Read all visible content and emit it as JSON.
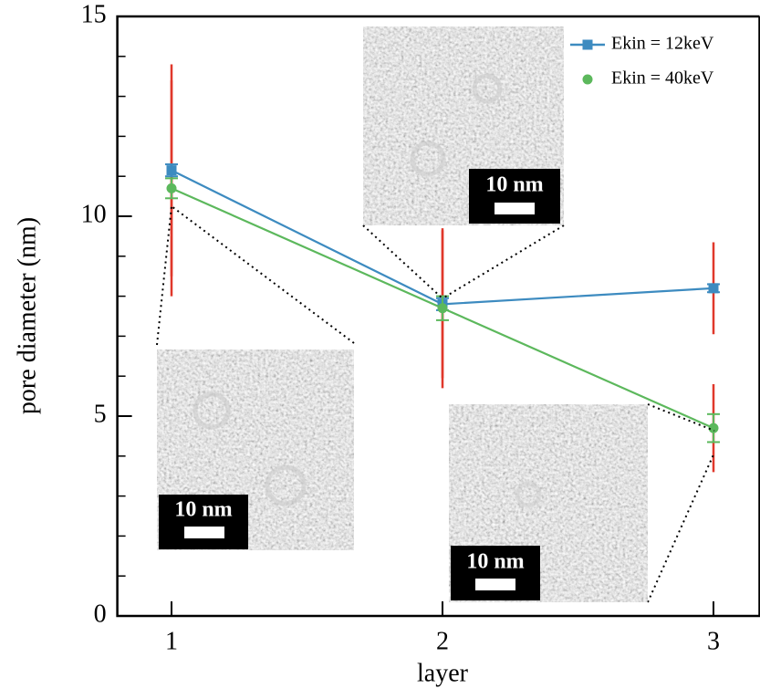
{
  "chart_data": {
    "type": "line",
    "x_label": "layer",
    "y_label": "pore diameter (nm)",
    "x": [
      1,
      2,
      3
    ],
    "series": [
      {
        "name": "Ekin = 12keV",
        "color": "#3d8bc0",
        "marker": "square",
        "values": [
          11.15,
          7.8,
          8.2
        ],
        "errors": [
          0.15,
          0.15,
          0.1
        ],
        "std": [
          2.65,
          1.85,
          1.15
        ]
      },
      {
        "name": "Ekin = 40keV",
        "color": "#5cb85c",
        "marker": "circle",
        "values": [
          10.7,
          7.7,
          4.7
        ],
        "errors": [
          0.25,
          0.3,
          0.35
        ],
        "std": [
          2.7,
          2.0,
          1.1
        ]
      }
    ],
    "std_color": "#e0382b",
    "xlim": [
      0.8,
      3.17
    ],
    "xticks": [
      1,
      2,
      3
    ],
    "ylim": [
      0,
      15
    ],
    "yticks": [
      0,
      5,
      10,
      15
    ],
    "yticks_minor": [
      1,
      2,
      3,
      4,
      6,
      7,
      8,
      9,
      11,
      12,
      13,
      14
    ],
    "legend": "upper right",
    "insets": [
      {
        "scale_label": "10 nm"
      },
      {
        "scale_label": "10 nm"
      },
      {
        "scale_label": "10 nm"
      }
    ]
  }
}
